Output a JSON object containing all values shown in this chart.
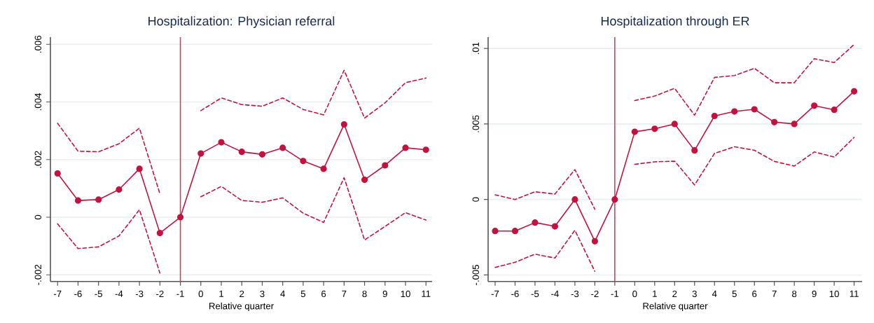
{
  "chart_data": [
    {
      "type": "line",
      "title": "Hospitalization: Physician referral",
      "xlabel": "Relative quarter",
      "x": [
        -7,
        -6,
        -5,
        -4,
        -3,
        -2,
        -1,
        0,
        1,
        2,
        3,
        4,
        5,
        6,
        7,
        8,
        9,
        10,
        11
      ],
      "series": [
        {
          "color": "#c4123f",
          "values": [
            0.00152,
            0.00058,
            0.00061,
            0.00096,
            0.00168,
            -0.00055,
            0,
            0.00221,
            0.0026,
            0.00227,
            0.00218,
            0.00241,
            0.00195,
            0.00168,
            0.00322,
            0.0013,
            0.0018,
            0.00241,
            0.00234
          ]
        },
        {
          "color": "#c4123f",
          "line_style": "dashed",
          "marker": "none",
          "values": [
            0.00326,
            0.00229,
            0.00227,
            0.00255,
            0.00309,
            0.00081,
            null,
            0.0037,
            0.00414,
            0.00391,
            0.00385,
            0.00414,
            0.00374,
            0.00355,
            0.0051,
            0.00344,
            0.00397,
            0.00467,
            0.00483
          ]
        },
        {
          "color": "#c4123f",
          "line_style": "dashed",
          "marker": "none",
          "values": [
            -0.00023,
            -0.00109,
            -0.00103,
            -0.00065,
            0.00026,
            -0.00194,
            null,
            0.00071,
            0.00107,
            0.00058,
            0.00052,
            0.00067,
            0.00014,
            -0.00018,
            0.00137,
            -0.00079,
            -0.00032,
            0.00016,
            -0.0001
          ]
        }
      ],
      "xlim": [
        -7.35,
        11.3
      ],
      "xticks": [
        -7,
        -6,
        -5,
        -4,
        -3,
        -2,
        -1,
        0,
        1,
        2,
        3,
        4,
        5,
        6,
        7,
        8,
        9,
        10,
        11
      ],
      "ylim": [
        -0.00223,
        0.00625
      ],
      "yticks": [
        {
          "value": -0.002,
          "label": "-.002"
        },
        0,
        {
          "value": 0.002,
          "label": ".002"
        },
        {
          "value": 0.004,
          "label": ".004"
        },
        {
          "value": 0.006,
          "label": ".006"
        }
      ],
      "ref_lines": [
        {
          "axis": "x",
          "value": -1,
          "color": "#d2405f"
        }
      ],
      "grid": "y",
      "marker": "circle",
      "line_style": "solid"
    },
    {
      "type": "line",
      "title": "Hospitalization through ER",
      "xlabel": "Relative quarter",
      "x": [
        -7,
        -6,
        -5,
        -4,
        -3,
        -2,
        -1,
        0,
        1,
        2,
        3,
        4,
        5,
        6,
        7,
        8,
        9,
        10,
        11
      ],
      "series": [
        {
          "color": "#c4123f",
          "values": [
            -0.00209,
            -0.00209,
            -0.00153,
            -0.00178,
            0,
            -0.00277,
            0,
            0.00448,
            0.00468,
            0.005,
            0.00325,
            0.00553,
            0.00583,
            0.00597,
            0.00512,
            0.005,
            0.00621,
            0.00594,
            0.00716
          ]
        },
        {
          "color": "#c4123f",
          "line_style": "dashed",
          "marker": "none",
          "values": [
            0.00031,
            0,
            0.00051,
            0.00036,
            0.00198,
            -0.00065,
            null,
            0.00655,
            0.00685,
            0.00736,
            0.00558,
            0.00808,
            0.00821,
            0.00869,
            0.00773,
            0.00773,
            0.00932,
            0.00907,
            0.01026
          ]
        },
        {
          "color": "#c4123f",
          "line_style": "dashed",
          "marker": "none",
          "values": [
            -0.0045,
            -0.00416,
            -0.00362,
            -0.00388,
            -0.00204,
            -0.00476,
            null,
            0.00233,
            0.00249,
            0.00254,
            0.00096,
            0.00305,
            0.00349,
            0.00326,
            0.00252,
            0.00221,
            0.00315,
            0.00281,
            0.00411
          ]
        }
      ],
      "xlim": [
        -7.35,
        11.4
      ],
      "xticks": [
        -7,
        -6,
        -5,
        -4,
        -3,
        -2,
        -1,
        0,
        1,
        2,
        3,
        4,
        5,
        6,
        7,
        8,
        9,
        10,
        11
      ],
      "ylim": [
        -0.00543,
        0.01075
      ],
      "yticks": [
        {
          "value": -0.005,
          "label": "-.005"
        },
        0,
        {
          "value": 0.005,
          "label": ".005"
        },
        {
          "value": 0.01,
          "label": ".01"
        }
      ],
      "ref_lines": [
        {
          "axis": "x",
          "value": -1,
          "color": "#d2405f"
        }
      ],
      "grid": "y",
      "marker": "circle",
      "line_style": "solid"
    }
  ]
}
